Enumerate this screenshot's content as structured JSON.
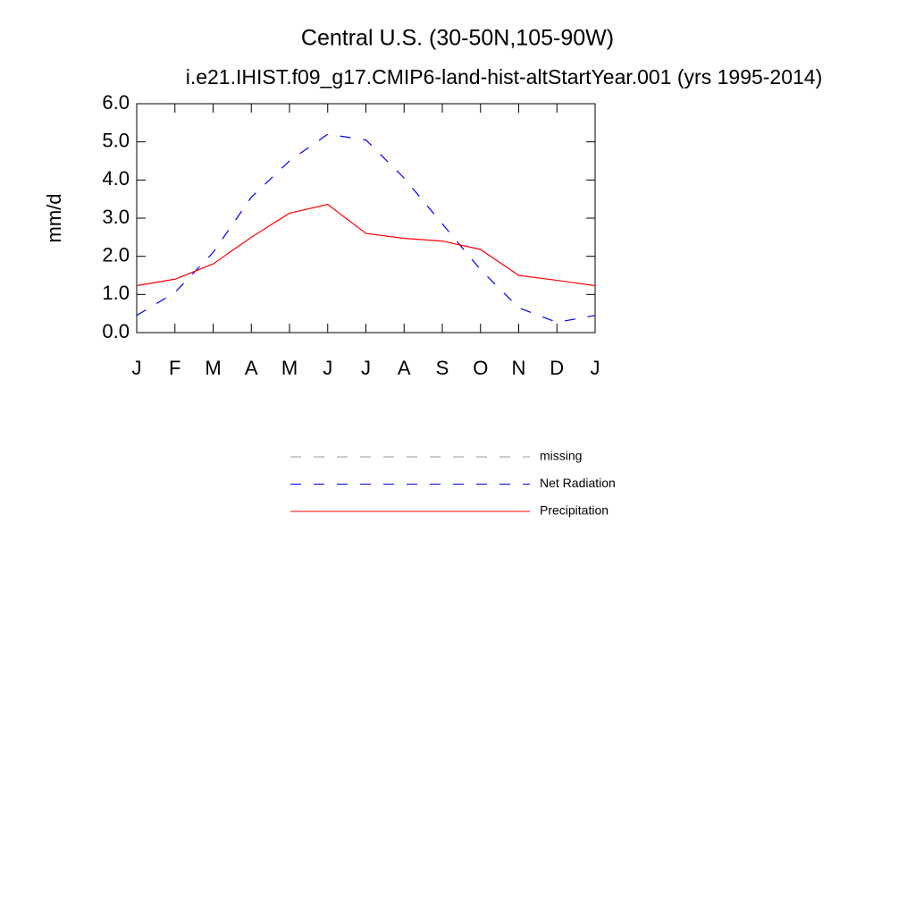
{
  "chart_data": {
    "type": "line",
    "title": "Central U.S. (30-50N,105-90W)",
    "subtitle": "i.e21.IHIST.f09_g17.CMIP6-land-hist-altStartYear.001 (yrs 1995-2014)",
    "y_label": "mm/d",
    "categories": [
      "J",
      "F",
      "M",
      "A",
      "M",
      "J",
      "J",
      "A",
      "S",
      "O",
      "N",
      "D",
      "J"
    ],
    "ylim": [
      0,
      6
    ],
    "yticks": [
      {
        "value": 0,
        "label": "0.0"
      },
      {
        "value": 1,
        "label": "1.0"
      },
      {
        "value": 2,
        "label": "2.0"
      },
      {
        "value": 3,
        "label": "3.0"
      },
      {
        "value": 4,
        "label": "4.0"
      },
      {
        "value": 5,
        "label": "5.0"
      },
      {
        "value": 6,
        "label": "6.0"
      }
    ],
    "series": [
      {
        "name": "missing",
        "color": "#999999",
        "dash": "dashed",
        "values": [
          null,
          null,
          null,
          null,
          null,
          null,
          null,
          null,
          null,
          null,
          null,
          null,
          null
        ]
      },
      {
        "name": "Net Radiation",
        "color": "#0000ff",
        "dash": "dashed",
        "values": [
          0.45,
          1.05,
          2.1,
          3.55,
          4.5,
          5.2,
          5.05,
          4.05,
          2.85,
          1.65,
          0.65,
          0.27,
          0.45
        ]
      },
      {
        "name": "Precipitation",
        "color": "#ff0000",
        "dash": "solid",
        "values": [
          1.23,
          1.4,
          1.8,
          2.5,
          3.13,
          3.36,
          2.6,
          2.47,
          2.4,
          2.18,
          1.5,
          1.37,
          1.23
        ]
      }
    ]
  }
}
